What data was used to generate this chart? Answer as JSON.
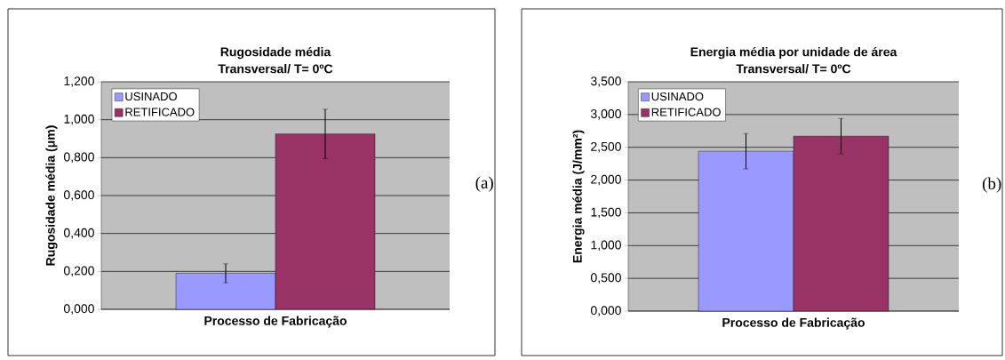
{
  "chart_data": [
    {
      "type": "bar",
      "title": "Rugosidade média",
      "subtitle": "Transversal/ T= 0ºC",
      "xlabel": "Processo de Fabricação",
      "ylabel": "Rugosidade média (μm)",
      "categories": [
        null
      ],
      "series": [
        {
          "name": "USINADO",
          "color": "#9999ff",
          "values": [
            0.19
          ],
          "errors": [
            0.05
          ]
        },
        {
          "name": "RETIFICADO",
          "color": "#993366",
          "values": [
            0.925
          ],
          "errors": [
            0.13
          ]
        }
      ],
      "ylim": [
        0,
        1.2
      ],
      "yticks": [
        {
          "value": 0,
          "label": "0,000"
        },
        {
          "value": 0.2,
          "label": "0,200"
        },
        {
          "value": 0.4,
          "label": "0,400"
        },
        {
          "value": 0.6,
          "label": "0,600"
        },
        {
          "value": 0.8,
          "label": "0,800"
        },
        {
          "value": 1.0,
          "label": "1,000"
        },
        {
          "value": 1.2,
          "label": "1,200"
        }
      ],
      "grid": "y",
      "legend": "top left",
      "annotations": [
        "(a)"
      ]
    },
    {
      "type": "bar",
      "title": "Energia média por unidade de área",
      "subtitle": "Transversal/ T= 0ºC",
      "xlabel": "Processo de Fabricação",
      "ylabel": "Energia média  (J/mm²)",
      "categories": [
        null
      ],
      "series": [
        {
          "name": "USINADO",
          "color": "#9999ff",
          "values": [
            2.44
          ],
          "errors": [
            0.27
          ]
        },
        {
          "name": "RETIFICADO",
          "color": "#993366",
          "values": [
            2.67
          ],
          "errors": [
            0.27
          ]
        }
      ],
      "ylim": [
        0,
        3.5
      ],
      "yticks": [
        {
          "value": 0,
          "label": "0,000"
        },
        {
          "value": 0.5,
          "label": "0,500"
        },
        {
          "value": 1.0,
          "label": "1,000"
        },
        {
          "value": 1.5,
          "label": "1,500"
        },
        {
          "value": 2.0,
          "label": "2,000"
        },
        {
          "value": 2.5,
          "label": "2,500"
        },
        {
          "value": 3.0,
          "label": "3,000"
        },
        {
          "value": 3.5,
          "label": "3,500"
        }
      ],
      "grid": "y",
      "legend": "top left",
      "annotations": [
        "(b)"
      ]
    }
  ]
}
